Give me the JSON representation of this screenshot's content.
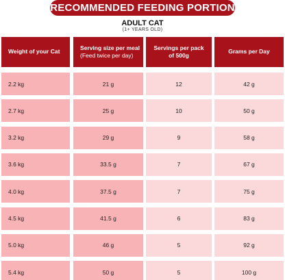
{
  "header": {
    "title": "RECOMMENDED FEEDING PORTION",
    "subtitle": "ADULT CAT",
    "subtitle_note": "(1+ YEARS OLD)"
  },
  "colors": {
    "header_bg": "#a8121b",
    "col_dark": "#f7b3b6",
    "col_light": "#fbd9da"
  },
  "table": {
    "columns": [
      {
        "label": "Weight of your Cat",
        "sub": ""
      },
      {
        "label": "Serving size per meal",
        "sub": "(Feed twice per day)"
      },
      {
        "label": "Servings per pack",
        "sub": "of 500g"
      },
      {
        "label": "Grams per Day",
        "sub": ""
      }
    ],
    "rows": [
      [
        "2.2 kg",
        "21 g",
        "12",
        "42 g"
      ],
      [
        "2.7 kg",
        "25 g",
        "10",
        "50 g"
      ],
      [
        "3.2 kg",
        "29 g",
        "9",
        "58 g"
      ],
      [
        "3.6 kg",
        "33.5 g",
        "7",
        "67 g"
      ],
      [
        "4.0 kg",
        "37.5 g",
        "7",
        "75 g"
      ],
      [
        "4.5 kg",
        "41.5 g",
        "6",
        "83 g"
      ],
      [
        "5.0 kg",
        "46 g",
        "5",
        "92 g"
      ],
      [
        "5.4 kg",
        "50 g",
        "5",
        "100 g"
      ]
    ]
  }
}
